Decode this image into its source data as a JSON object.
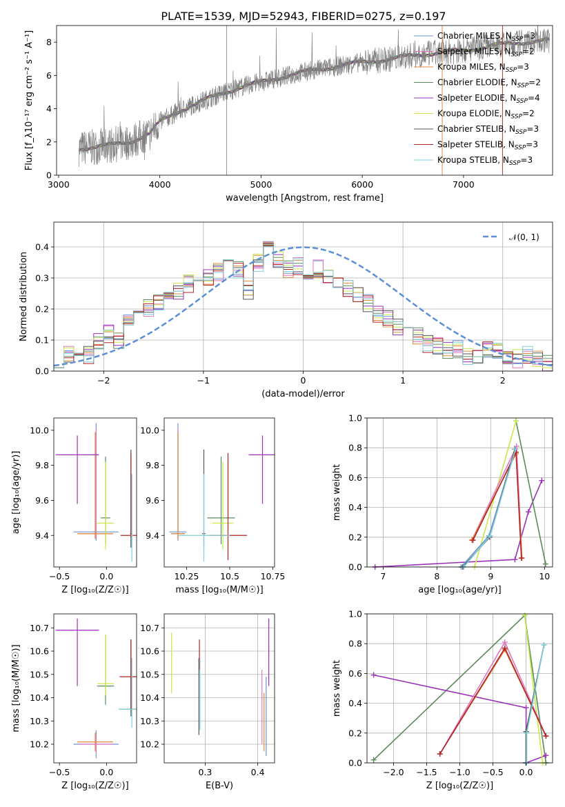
{
  "title": "PLATE=1539, MJD=52943, FIBERID=0275, z=0.197",
  "colors": {
    "chabrier_miles": "#6a93d4",
    "salpeter_miles": "#e377c2",
    "kroupa_miles": "#e08a3a",
    "chabrier_elodie": "#5a8a5a",
    "salpeter_elodie": "#9b30b8",
    "kroupa_elodie": "#c8e84a",
    "chabrier_stelib": "#555555",
    "salpeter_stelib": "#b22222",
    "kroupa_stelib": "#80d0d8",
    "spectrum": "#808080",
    "normal": "#5b8fd6"
  },
  "chart_data": [
    {
      "id": "spectrum",
      "type": "line",
      "xlabel": "wavelength [Angstrom, rest frame]",
      "ylabel": "Flux [f_λ10⁻¹⁷ erg cm⁻² s⁻¹ A⁻¹]",
      "xlim": [
        2980,
        7880
      ],
      "ylim": [
        0,
        9
      ],
      "xticks": [
        3000,
        4000,
        5000,
        6000,
        7000
      ],
      "yticks": [
        0,
        2,
        4,
        6,
        8
      ],
      "legend_position": "right",
      "legend": [
        "Chabrier MILES, N_SSP=3",
        "Salpeter MILES, N_SSP=2",
        "Kroupa MILES, N_SSP=3",
        "Chabrier ELODIE, N_SSP=2",
        "Salpeter ELODIE, N_SSP=4",
        "Kroupa ELODIE, N_SSP=2",
        "Chabrier STELIB, N_SSP=3",
        "Salpeter STELIB, N_SSP=3",
        "Kroupa STELIB, N_SSP=3"
      ],
      "continuum": [
        [
          3200,
          1.6
        ],
        [
          3500,
          1.8
        ],
        [
          3700,
          2.0
        ],
        [
          3900,
          2.5
        ],
        [
          4000,
          3.2
        ],
        [
          4200,
          3.9
        ],
        [
          4400,
          4.4
        ],
        [
          4600,
          4.9
        ],
        [
          4800,
          5.3
        ],
        [
          5000,
          5.6
        ],
        [
          5200,
          5.9
        ],
        [
          5500,
          6.3
        ],
        [
          5800,
          6.6
        ],
        [
          6000,
          6.8
        ],
        [
          6300,
          7.0
        ],
        [
          6500,
          7.2
        ],
        [
          6800,
          7.4
        ],
        [
          7000,
          7.5
        ],
        [
          7300,
          7.8
        ],
        [
          7600,
          8.0
        ],
        [
          7800,
          8.1
        ]
      ]
    },
    {
      "id": "residuals",
      "type": "bar",
      "xlabel": "(data-model)/error",
      "ylabel": "Normed distribution",
      "xlim": [
        -2.5,
        2.5
      ],
      "ylim": [
        0,
        0.48
      ],
      "xticks": [
        -2,
        -1,
        0,
        1,
        2
      ],
      "yticks": [
        0.0,
        0.1,
        0.2,
        0.3,
        0.4
      ],
      "legend": "𝒩(0, 1)",
      "legend_position": "top-right",
      "bin_start": -2.5,
      "bin_width": 0.1,
      "values": [
        0.04,
        0.05,
        0.06,
        0.07,
        0.05,
        0.09,
        0.1,
        0.09,
        0.12,
        0.1,
        0.11,
        0.16,
        0.17,
        0.18,
        0.2,
        0.19,
        0.22,
        0.24,
        0.27,
        0.26,
        0.28,
        0.27,
        0.31,
        0.33,
        0.3,
        0.32,
        0.31,
        0.34,
        0.33,
        0.36,
        0.26,
        0.4,
        0.35,
        0.41,
        0.34,
        0.36,
        0.33,
        0.38,
        0.34,
        0.37,
        0.32,
        0.33,
        0.3,
        0.31,
        0.28,
        0.29,
        0.27,
        0.28,
        0.25,
        0.22,
        0.2,
        0.18,
        0.17,
        0.16,
        0.14,
        0.13,
        0.12,
        0.11,
        0.1,
        0.09,
        0.08,
        0.1,
        0.07,
        0.06,
        0.07,
        0.05,
        0.06,
        0.05,
        0.07,
        0.05,
        0.06,
        0.05,
        0.05,
        0.04,
        0.05,
        0.05,
        0.04,
        0.04,
        0.03,
        0.04
      ],
      "normal": {
        "mu": 0,
        "sigma": 1,
        "peak": 0.399
      }
    },
    {
      "id": "age_vs_Z",
      "type": "scatter",
      "xlabel": "Z [log₁₀(Z/Z☉)]",
      "ylabel": "age  [log₁₀(age/yr)]",
      "xlim": [
        -0.56,
        0.32
      ],
      "ylim": [
        9.22,
        10.07
      ],
      "xticks": [
        -0.5,
        0.0
      ],
      "yticks": [
        9.4,
        9.6,
        9.8,
        10.0
      ],
      "points": [
        {
          "series": "chabrier_miles",
          "x": -0.11,
          "y": 9.42,
          "xerr": 0.24,
          "yerr": [
            0.05,
            0.62
          ]
        },
        {
          "series": "salpeter_miles",
          "x": -0.11,
          "y": 9.41,
          "xerr": 0.18,
          "yerr": [
            0.03,
            0.6
          ]
        },
        {
          "series": "kroupa_miles",
          "x": -0.12,
          "y": 9.41,
          "xerr": 0.19,
          "yerr": [
            0.03,
            0.58
          ]
        },
        {
          "series": "chabrier_elodie",
          "x": -0.01,
          "y": 9.5,
          "xerr": 0.05,
          "yerr": [
            0.15,
            0.35
          ]
        },
        {
          "series": "salpeter_elodie",
          "x": -0.31,
          "y": 9.86,
          "xerr": 0.23,
          "yerr": [
            0.28,
            0.11
          ]
        },
        {
          "series": "kroupa_elodie",
          "x": -0.01,
          "y": 9.47,
          "xerr": 0.09,
          "yerr": [
            0.15,
            0.35
          ]
        },
        {
          "series": "chabrier_stelib",
          "x": 0.26,
          "y": 9.41,
          "xerr": 0.01,
          "yerr": [
            0.08,
            0.48
          ]
        },
        {
          "series": "salpeter_stelib",
          "x": 0.26,
          "y": 9.4,
          "xerr": 0.11,
          "yerr": [
            0.01,
            0.47
          ]
        },
        {
          "series": "kroupa_stelib",
          "x": 0.27,
          "y": 9.4,
          "xerr": 0.01,
          "yerr": [
            0.15,
            0.35
          ]
        }
      ]
    },
    {
      "id": "age_vs_mass",
      "type": "scatter",
      "xlabel": "mass [log₁₀(M/M☉)]",
      "ylabel": "",
      "xlim": [
        10.12,
        10.76
      ],
      "ylim": [
        9.22,
        10.07
      ],
      "xticks": [
        10.25,
        10.5,
        10.75
      ],
      "yticks": [
        9.4,
        9.6,
        9.8,
        10.0
      ],
      "points": [
        {
          "series": "chabrier_miles",
          "x": 10.2,
          "y": 9.42,
          "xerr": 0.05,
          "yerr": [
            0.05,
            0.62
          ]
        },
        {
          "series": "salpeter_miles",
          "x": 10.2,
          "y": 9.41,
          "xerr": 0.04,
          "yerr": [
            0.03,
            0.6
          ]
        },
        {
          "series": "kroupa_miles",
          "x": 10.2,
          "y": 9.41,
          "xerr": 0.04,
          "yerr": [
            0.03,
            0.58
          ]
        },
        {
          "series": "chabrier_elodie",
          "x": 10.45,
          "y": 9.5,
          "xerr": 0.08,
          "yerr": [
            0.15,
            0.35
          ]
        },
        {
          "series": "salpeter_elodie",
          "x": 10.69,
          "y": 9.86,
          "xerr": 0.08,
          "yerr": [
            0.28,
            0.11
          ]
        },
        {
          "series": "kroupa_elodie",
          "x": 10.46,
          "y": 9.47,
          "xerr": 0.06,
          "yerr": [
            0.15,
            0.35
          ]
        },
        {
          "series": "chabrier_stelib",
          "x": 10.35,
          "y": 9.41,
          "xerr": 0.01,
          "yerr": [
            0.08,
            0.48
          ]
        },
        {
          "series": "salpeter_stelib",
          "x": 10.49,
          "y": 9.4,
          "xerr": 0.11,
          "yerr": [
            0.14,
            0.47
          ]
        },
        {
          "series": "kroupa_stelib",
          "x": 10.35,
          "y": 9.4,
          "xerr": 0.15,
          "yerr": [
            0.15,
            0.35
          ]
        }
      ]
    },
    {
      "id": "weight_vs_age",
      "type": "line",
      "xlabel": "age  [log₁₀(age/yr)]",
      "ylabel": "mass weight",
      "xlim": [
        6.7,
        10.15
      ],
      "ylim": [
        0,
        1
      ],
      "xticks": [
        7,
        8,
        9,
        10
      ],
      "yticks": [
        0.0,
        0.2,
        0.4,
        0.6,
        0.8,
        1.0
      ],
      "series": [
        {
          "series": "salpeter_elodie",
          "x": [
            6.85,
            9.45,
            9.7,
            9.95
          ],
          "y": [
            0.0,
            0.05,
            0.37,
            0.58
          ]
        },
        {
          "series": "chabrier_elodie",
          "x": [
            9.47,
            10.02
          ],
          "y": [
            0.98,
            0.02
          ]
        },
        {
          "series": "kroupa_elodie",
          "x": [
            8.7,
            9.47
          ],
          "y": [
            0.0,
            0.98
          ]
        },
        {
          "series": "salpeter_miles",
          "x": [
            8.65,
            9.48,
            9.58
          ],
          "y": [
            0.18,
            0.81,
            0.06
          ]
        },
        {
          "series": "kroupa_miles",
          "x": [
            8.65,
            9.47,
            9.58
          ],
          "y": [
            0.18,
            0.76,
            0.06
          ]
        },
        {
          "series": "salpeter_stelib",
          "x": [
            8.67,
            9.47,
            9.57
          ],
          "y": [
            0.18,
            0.77,
            0.06
          ]
        },
        {
          "series": "chabrier_miles",
          "x": [
            8.45,
            8.97,
            9.45
          ],
          "y": [
            0.0,
            0.21,
            0.79
          ]
        },
        {
          "series": "chabrier_stelib",
          "x": [
            8.48,
            8.98,
            9.45
          ],
          "y": [
            0.0,
            0.2,
            0.79
          ]
        },
        {
          "series": "kroupa_stelib",
          "x": [
            8.5,
            8.99,
            9.46
          ],
          "y": [
            0.0,
            0.21,
            0.79
          ]
        }
      ]
    },
    {
      "id": "mass_vs_Z",
      "type": "scatter",
      "xlabel": "Z [log₁₀(Z/Z☉)]",
      "ylabel": "mass [log₁₀(M/M☉)]",
      "xlim": [
        -0.56,
        0.32
      ],
      "ylim": [
        10.12,
        10.76
      ],
      "xticks": [
        -0.5,
        0.0
      ],
      "yticks": [
        10.2,
        10.3,
        10.4,
        10.5,
        10.6,
        10.7
      ],
      "points": [
        {
          "series": "chabrier_miles",
          "x": -0.11,
          "y": 10.2,
          "xerr": 0.24,
          "yerr": [
            0.06,
            0.06
          ]
        },
        {
          "series": "salpeter_miles",
          "x": -0.11,
          "y": 10.2,
          "xerr": 0.18,
          "yerr": [
            0.04,
            0.04
          ]
        },
        {
          "series": "kroupa_miles",
          "x": -0.12,
          "y": 10.21,
          "xerr": 0.19,
          "yerr": [
            0.04,
            0.04
          ]
        },
        {
          "series": "chabrier_elodie",
          "x": -0.01,
          "y": 10.45,
          "xerr": 0.09,
          "yerr": [
            0.08,
            0.22
          ]
        },
        {
          "series": "salpeter_elodie",
          "x": -0.31,
          "y": 10.69,
          "xerr": 0.23,
          "yerr": [
            0.24,
            0.05
          ]
        },
        {
          "series": "kroupa_elodie",
          "x": -0.01,
          "y": 10.46,
          "xerr": 0.09,
          "yerr": [
            0.05,
            0.21
          ]
        },
        {
          "series": "chabrier_stelib",
          "x": 0.26,
          "y": 10.35,
          "xerr": 0.12,
          "yerr": [
            0.03,
            0.3
          ]
        },
        {
          "series": "salpeter_stelib",
          "x": 0.26,
          "y": 10.49,
          "xerr": 0.12,
          "yerr": [
            0.14,
            0.16
          ]
        },
        {
          "series": "kroupa_stelib",
          "x": 0.27,
          "y": 10.35,
          "xerr": 0.14,
          "yerr": [
            0.08,
            0.22
          ]
        }
      ]
    },
    {
      "id": "mass_vs_ebv",
      "type": "scatter",
      "xlabel": "E(B-V)",
      "ylabel": "",
      "xlim": [
        0.222,
        0.432
      ],
      "ylim": [
        10.12,
        10.76
      ],
      "xticks": [
        0.3,
        0.4
      ],
      "yticks": [
        10.2,
        10.3,
        10.4,
        10.5,
        10.6,
        10.7
      ],
      "points": [
        {
          "series": "kroupa_elodie",
          "x": 0.236,
          "y": 10.55,
          "xerr": 0,
          "yerr": [
            0.13,
            0.13
          ]
        },
        {
          "series": "chabrier_stelib",
          "x": 0.288,
          "y": 10.4,
          "xerr": 0,
          "yerr": [
            0.16,
            0.17
          ]
        },
        {
          "series": "salpeter_stelib",
          "x": 0.289,
          "y": 10.55,
          "xerr": 0,
          "yerr": [
            0.03,
            0.1
          ]
        },
        {
          "series": "kroupa_stelib",
          "x": 0.29,
          "y": 10.42,
          "xerr": 0,
          "yerr": [
            0.16,
            0.15
          ]
        },
        {
          "series": "salpeter_miles",
          "x": 0.408,
          "y": 10.4,
          "xerr": 0,
          "yerr": [
            0.2,
            0.12
          ]
        },
        {
          "series": "kroupa_miles",
          "x": 0.412,
          "y": 10.3,
          "xerr": 0,
          "yerr": [
            0.13,
            0.12
          ]
        },
        {
          "series": "chabrier_miles",
          "x": 0.416,
          "y": 10.3,
          "xerr": 0,
          "yerr": [
            0.15,
            0.19
          ]
        },
        {
          "series": "salpeter_elodie",
          "x": 0.421,
          "y": 10.6,
          "xerr": 0,
          "yerr": [
            0.15,
            0.14
          ]
        }
      ]
    },
    {
      "id": "weight_vs_Z",
      "type": "line",
      "xlabel": "Z [log₁₀(Z/Z☉)]",
      "ylabel": "mass weight",
      "xlim": [
        -2.4,
        0.4
      ],
      "ylim": [
        0,
        1
      ],
      "xticks": [
        -2.0,
        -1.5,
        -1.0,
        -0.5,
        0.0
      ],
      "yticks": [
        0.0,
        0.2,
        0.4,
        0.6,
        0.8,
        1.0
      ],
      "series": [
        {
          "series": "chabrier_elodie",
          "x": [
            -2.3,
            -0.02,
            0.3
          ],
          "y": [
            0.02,
            0.99,
            0.0
          ]
        },
        {
          "series": "salpeter_elodie",
          "x": [
            -2.3,
            0.0,
            0.0
          ],
          "y": [
            0.59,
            0.37,
            0.0
          ]
        },
        {
          "series": "salpeter_elodie",
          "x": [
            0.0,
            0.3
          ],
          "y": [
            0.0,
            0.05
          ]
        },
        {
          "series": "kroupa_elodie",
          "x": [
            -0.02,
            0.25
          ],
          "y": [
            0.99,
            0.0
          ]
        },
        {
          "series": "kroupa_miles",
          "x": [
            -1.3,
            -0.32,
            0.3
          ],
          "y": [
            0.06,
            0.76,
            0.18
          ]
        },
        {
          "series": "salpeter_miles",
          "x": [
            -1.3,
            -0.32,
            0.3
          ],
          "y": [
            0.06,
            0.81,
            0.18
          ]
        },
        {
          "series": "salpeter_stelib",
          "x": [
            -1.3,
            -0.32,
            0.3
          ],
          "y": [
            0.06,
            0.77,
            0.18
          ]
        },
        {
          "series": "chabrier_miles",
          "x": [
            0.0,
            0.0,
            0.27
          ],
          "y": [
            0.0,
            0.21,
            0.79
          ]
        },
        {
          "series": "chabrier_stelib",
          "x": [
            0.0,
            0.0,
            0.27
          ],
          "y": [
            0.0,
            0.21,
            0.79
          ]
        },
        {
          "series": "kroupa_stelib",
          "x": [
            0.01,
            0.01,
            0.27
          ],
          "y": [
            0.0,
            0.2,
            0.79
          ]
        }
      ]
    }
  ]
}
